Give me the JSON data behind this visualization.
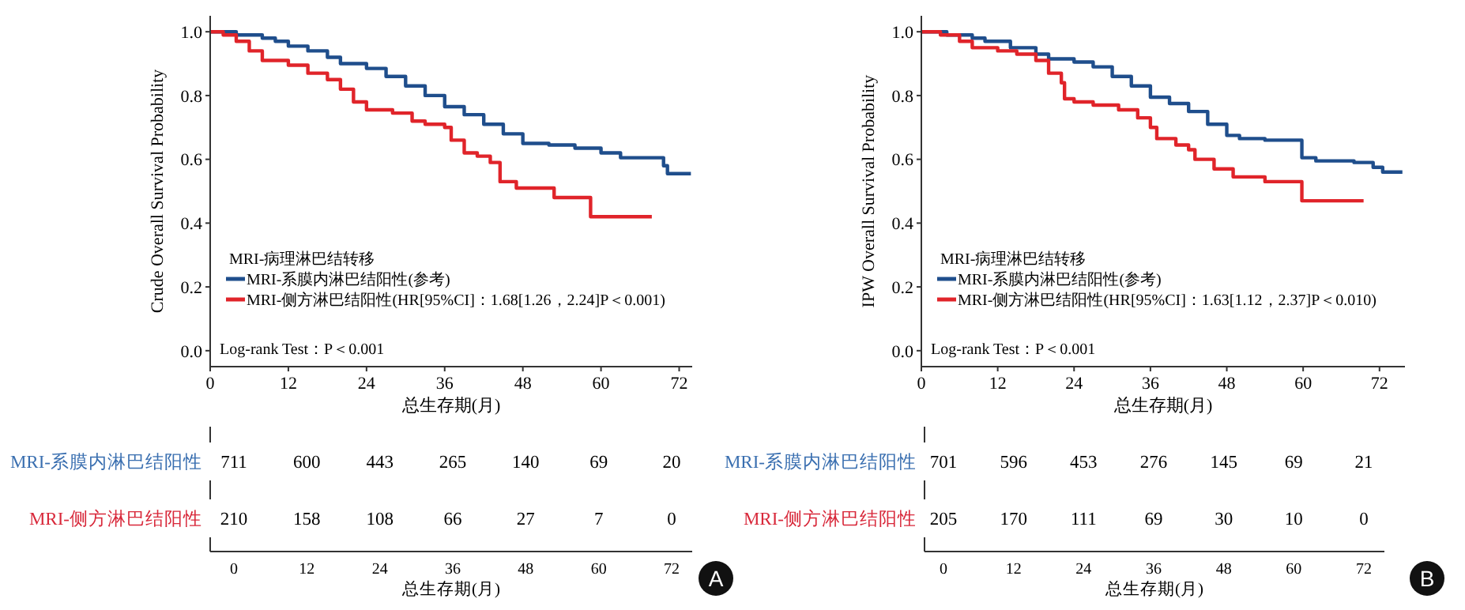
{
  "chart_data": [
    {
      "type": "step",
      "ylabel": "Crude Overall Survival Probability",
      "xlabel": "总生存期(月)",
      "legend_title": "MRI-病理淋巴结转移",
      "legend": "bottom left",
      "xlim": [
        0,
        74
      ],
      "ylim": [
        -0.05,
        1.05
      ],
      "xticks": [
        0,
        12,
        24,
        36,
        48,
        60,
        72
      ],
      "yticks": [
        {
          "value": 0,
          "label": "0.0"
        },
        {
          "value": 0.2,
          "label": "0.2"
        },
        {
          "value": 0.4,
          "label": "0.4"
        },
        {
          "value": 0.6,
          "label": "0.6"
        },
        {
          "value": 0.8,
          "label": "0.8"
        },
        {
          "value": 1,
          "label": "1.0"
        }
      ],
      "annotations": [
        "Log-rank Test：P＜0.001"
      ],
      "series": [
        {
          "name": "MRI-系膜内淋巴结阳性(参考)",
          "color": "#1f4e8c",
          "x": [
            0,
            4,
            8,
            10,
            12,
            15,
            18,
            20,
            24,
            27,
            30,
            33,
            36,
            39,
            42,
            45,
            48,
            52,
            56,
            60,
            63,
            69.6,
            70.2,
            73.8
          ],
          "values": [
            1,
            0.99,
            0.98,
            0.97,
            0.955,
            0.94,
            0.92,
            0.9,
            0.885,
            0.86,
            0.83,
            0.8,
            0.765,
            0.74,
            0.71,
            0.68,
            0.65,
            0.645,
            0.635,
            0.62,
            0.605,
            0.58,
            0.555,
            0.555
          ]
        },
        {
          "name": "MRI-侧方淋巴结阳性(HR[95%CI]：1.68[1.26，2.24]P＜0.001)",
          "color": "#e0242a",
          "x": [
            0,
            2,
            4,
            6,
            8,
            12,
            15,
            18,
            20,
            22,
            24,
            28,
            31,
            33,
            36,
            37,
            39,
            41,
            43,
            44.5,
            47,
            52.8,
            58.4,
            67.8
          ],
          "values": [
            1,
            0.99,
            0.97,
            0.94,
            0.91,
            0.895,
            0.87,
            0.85,
            0.82,
            0.78,
            0.755,
            0.745,
            0.72,
            0.71,
            0.7,
            0.66,
            0.62,
            0.61,
            0.59,
            0.53,
            0.51,
            0.48,
            0.42,
            0.42
          ]
        }
      ]
    },
    {
      "type": "heatmap",
      "xlabel": "总生存期(月)",
      "categories": [
        "0",
        "12",
        "24",
        "36",
        "48",
        "60",
        "72"
      ],
      "annotations": [
        "A"
      ],
      "data_labels": true,
      "y_categories": [
        "MRI-系膜内淋巴结阳性",
        "MRI-侧方淋巴结阳性"
      ],
      "colors": [
        "#3a6fb0",
        "#d8283a"
      ],
      "cells": [
        [
          711,
          600,
          443,
          265,
          140,
          69,
          20
        ],
        [
          210,
          158,
          108,
          66,
          27,
          7,
          0
        ]
      ]
    },
    {
      "type": "step",
      "ylabel": "IPW Overall Survival Probability",
      "xlabel": "总生存期(月)",
      "legend_title": "MRI-病理淋巴结转移",
      "legend": "bottom left",
      "xlim": [
        0,
        76
      ],
      "ylim": [
        -0.05,
        1.05
      ],
      "xticks": [
        0,
        12,
        24,
        36,
        48,
        60,
        72
      ],
      "yticks": [
        {
          "value": 0,
          "label": "0.0"
        },
        {
          "value": 0.2,
          "label": "0.2"
        },
        {
          "value": 0.4,
          "label": "0.4"
        },
        {
          "value": 0.6,
          "label": "0.6"
        },
        {
          "value": 0.8,
          "label": "0.8"
        },
        {
          "value": 1,
          "label": "1.0"
        }
      ],
      "annotations": [
        "Log-rank Test：P＜0.001"
      ],
      "series": [
        {
          "name": "MRI-系膜内淋巴结阳性(参考)",
          "color": "#1f4e8c",
          "x": [
            0,
            4,
            8,
            10,
            14,
            18,
            20,
            24,
            27,
            30,
            33,
            36,
            39,
            42,
            45,
            48,
            50,
            54,
            59.8,
            62,
            68,
            71,
            72.5,
            75.6
          ],
          "values": [
            1,
            0.99,
            0.98,
            0.97,
            0.95,
            0.93,
            0.915,
            0.905,
            0.89,
            0.86,
            0.83,
            0.795,
            0.775,
            0.75,
            0.71,
            0.675,
            0.665,
            0.66,
            0.605,
            0.595,
            0.59,
            0.575,
            0.56,
            0.56
          ]
        },
        {
          "name": "MRI-侧方淋巴结阳性(HR[95%CI]：1.63[1.12，2.37]P＜0.010)",
          "color": "#e0242a",
          "x": [
            0,
            3,
            6,
            8,
            12,
            15,
            18,
            20,
            22,
            22.5,
            24,
            27,
            31,
            34,
            36,
            37,
            40,
            42,
            43,
            46,
            49,
            54,
            59.8,
            69.5
          ],
          "values": [
            1,
            0.99,
            0.97,
            0.95,
            0.94,
            0.93,
            0.91,
            0.87,
            0.84,
            0.79,
            0.78,
            0.77,
            0.755,
            0.73,
            0.7,
            0.665,
            0.645,
            0.63,
            0.6,
            0.57,
            0.545,
            0.53,
            0.47,
            0.47
          ]
        }
      ]
    },
    {
      "type": "heatmap",
      "xlabel": "总生存期(月)",
      "categories": [
        "0",
        "12",
        "24",
        "36",
        "48",
        "60",
        "72"
      ],
      "annotations": [
        "B"
      ],
      "data_labels": true,
      "y_categories": [
        "MRI-系膜内淋巴结阳性",
        "MRI-侧方淋巴结阳性"
      ],
      "colors": [
        "#3a6fb0",
        "#d8283a"
      ],
      "cells": [
        [
          701,
          596,
          453,
          276,
          145,
          69,
          21
        ],
        [
          205,
          170,
          111,
          69,
          30,
          10,
          0
        ]
      ]
    }
  ]
}
